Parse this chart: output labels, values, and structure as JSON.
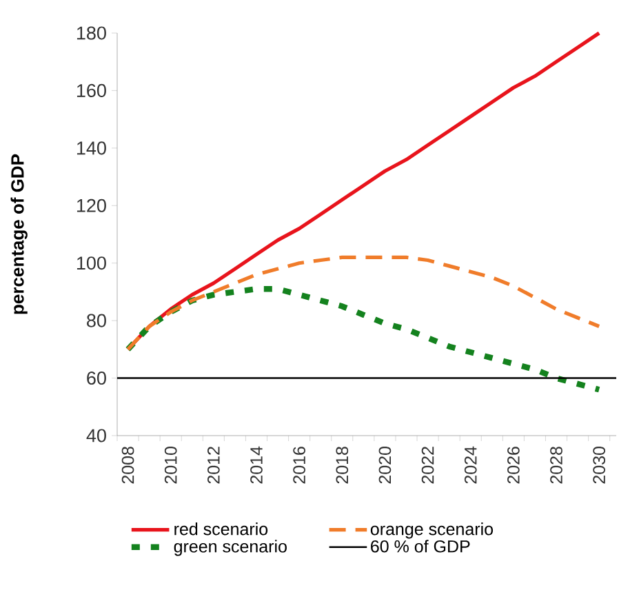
{
  "chart_data": {
    "type": "line",
    "ylabel": "**percentage of GDP**",
    "categories": [
      "2008",
      null,
      "2010",
      null,
      "2012",
      null,
      "2014",
      null,
      "2016",
      null,
      "2018",
      null,
      "2020",
      null,
      "2022",
      null,
      "2024",
      null,
      "2026",
      null,
      "2028",
      null,
      "2030"
    ],
    "series": [
      {
        "name": "red scenario",
        "color": "#e8141c",
        "line_style": "solid",
        "values": [
          70,
          78,
          84,
          89,
          93,
          98,
          103,
          108,
          112,
          117,
          122,
          127,
          132,
          136,
          141,
          146,
          151,
          156,
          161,
          165,
          170,
          175,
          180
        ]
      },
      {
        "name": "orange scenario",
        "color": "#f07c2a",
        "line_style": "dashed",
        "values": [
          70,
          78,
          83,
          87,
          90,
          93,
          96,
          98,
          100,
          101,
          102,
          102,
          102,
          102,
          101,
          99,
          97,
          95,
          92,
          88,
          84,
          81,
          78
        ]
      },
      {
        "name": "green scenario",
        "color": "#14821e",
        "line_style": "dotted",
        "values": [
          70,
          78,
          83,
          87,
          89,
          90,
          91,
          91,
          89,
          87,
          85,
          82,
          79,
          77,
          74,
          71,
          69,
          67,
          65,
          63,
          60,
          58,
          56
        ]
      }
    ],
    "ref_lines": [
      {
        "axis": "y",
        "value": 60,
        "label": "60 % of GDP",
        "color": "#000000",
        "line_style": "solid"
      }
    ],
    "ylim": [
      40,
      180
    ],
    "yticks": [
      40,
      60,
      80,
      100,
      120,
      140,
      160,
      180
    ],
    "legend": "bottom"
  }
}
